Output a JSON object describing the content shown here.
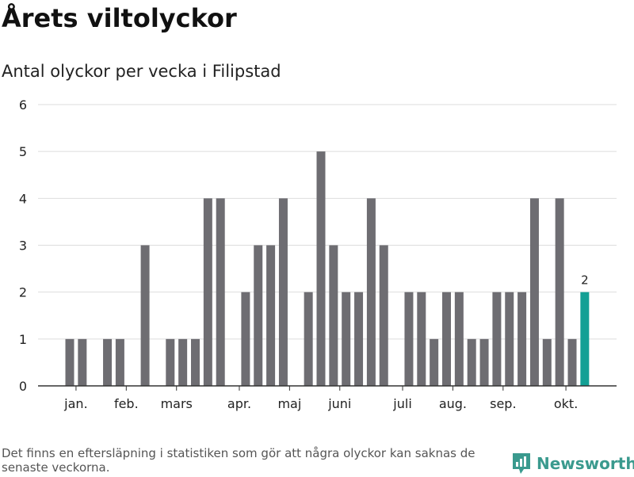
{
  "chart_data": {
    "type": "bar",
    "title": "Årets viltolyckor",
    "subtitle": "Antal olyckor per vecka i Filipstad",
    "xlabel": "",
    "ylabel": "",
    "ylim": [
      0,
      6
    ],
    "yticks": [
      "0",
      "1",
      "2",
      "3",
      "4",
      "5",
      "6"
    ],
    "month_labels": [
      {
        "label": "jan.",
        "week": 1.5
      },
      {
        "label": "feb.",
        "week": 5.5
      },
      {
        "label": "mars",
        "week": 9.5
      },
      {
        "label": "apr.",
        "week": 14.5
      },
      {
        "label": "maj",
        "week": 18.5
      },
      {
        "label": "juni",
        "week": 22.5
      },
      {
        "label": "juli",
        "week": 27.5
      },
      {
        "label": "aug.",
        "week": 31.5
      },
      {
        "label": "sep.",
        "week": 35.5
      },
      {
        "label": "okt.",
        "week": 40.5
      }
    ],
    "weeks": [
      1,
      2,
      3,
      4,
      5,
      6,
      7,
      8,
      9,
      10,
      11,
      12,
      13,
      14,
      15,
      16,
      17,
      18,
      19,
      20,
      21,
      22,
      23,
      24,
      25,
      26,
      27,
      28,
      29,
      30,
      31,
      32,
      33,
      34,
      35,
      36,
      37,
      38,
      39,
      40,
      41,
      42
    ],
    "values": [
      1,
      1,
      0,
      1,
      1,
      0,
      3,
      0,
      1,
      1,
      1,
      4,
      4,
      0,
      2,
      3,
      3,
      4,
      0,
      2,
      5,
      3,
      2,
      2,
      4,
      3,
      0,
      2,
      2,
      1,
      2,
      2,
      1,
      1,
      2,
      2,
      2,
      4,
      1,
      4,
      1,
      2
    ],
    "highlight_index": 41,
    "highlight_label": "2",
    "bar_color": "#6e6d72",
    "highlight_color": "#13a095",
    "grid": true
  },
  "footnote": "Det finns en eftersläpning i statistiken som gör att några olyckor kan saknas de senaste veckorna.",
  "brand": {
    "name": "Newsworthy",
    "icon": "newsworthy-logo-icon",
    "color": "#3a9a8e"
  }
}
